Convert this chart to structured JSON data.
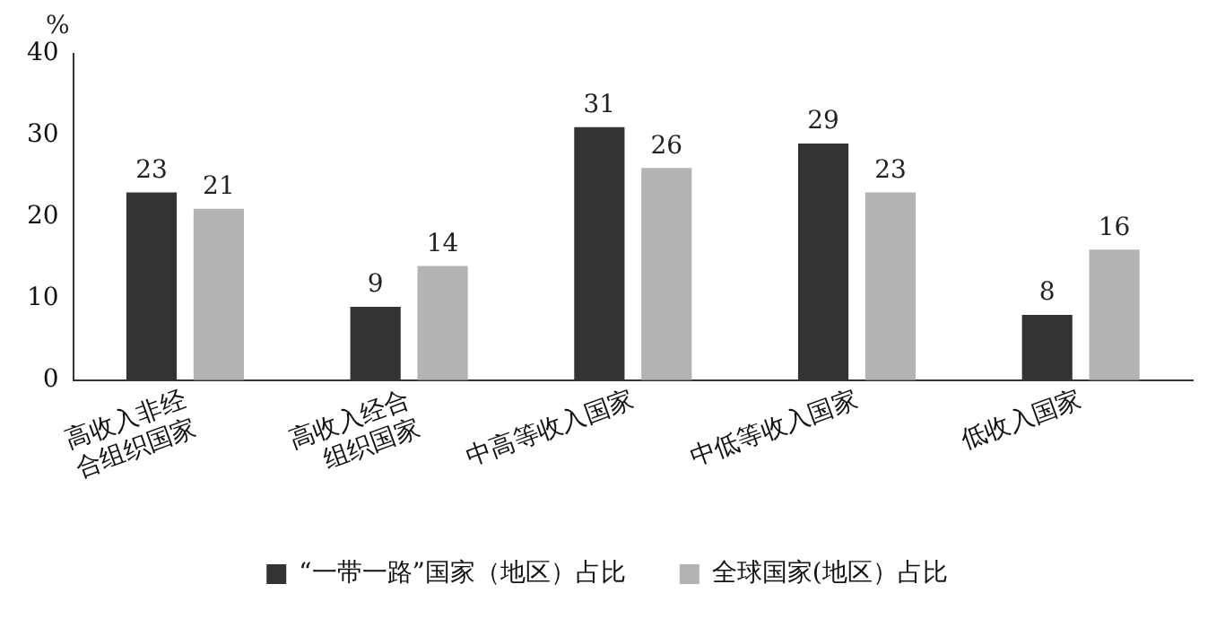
{
  "chart_data": {
    "type": "bar",
    "ylabel": "%",
    "categories": [
      "高收入非经合组织国家",
      "高收入经合组织国家",
      "中高等收入国家",
      "中低等收入国家",
      "低收入国家"
    ],
    "series": [
      {
        "name": "“一带一路”国家（地区）占比",
        "color": "#333333",
        "values": [
          23,
          9,
          31,
          29,
          8
        ]
      },
      {
        "name": "全球国家(地区）占比",
        "color": "#b3b3b3",
        "values": [
          21,
          14,
          26,
          23,
          16
        ]
      }
    ],
    "ylim": [
      0,
      40
    ],
    "yticks": [
      0,
      10,
      20,
      30,
      40
    ],
    "grid": false,
    "legend": "bottom",
    "data_labels": true
  }
}
